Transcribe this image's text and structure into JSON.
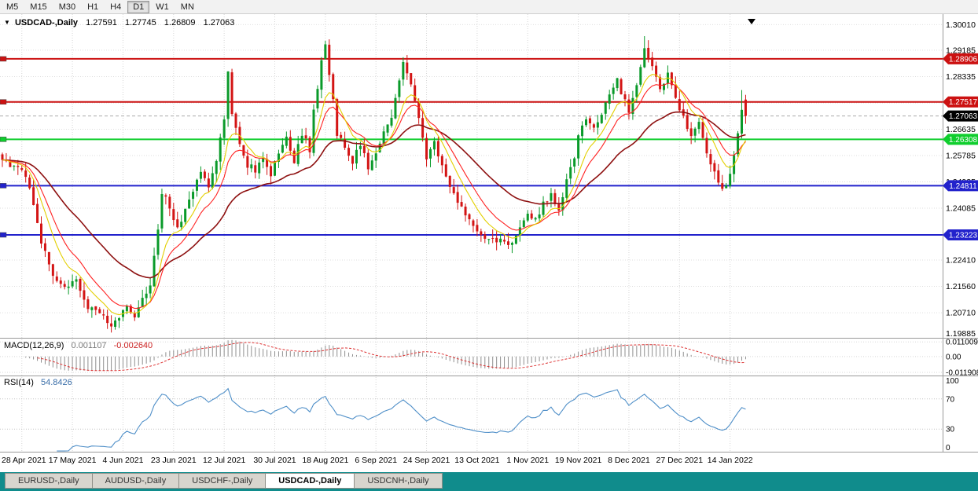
{
  "icons": {
    "dropdown": "▼"
  },
  "toolbar": {
    "timeframes": [
      "M5",
      "M15",
      "M30",
      "H1",
      "H4",
      "D1",
      "W1",
      "MN"
    ],
    "active": "D1"
  },
  "title": {
    "symbol": "USDCAD-,Daily",
    "open": "1.27591",
    "high": "1.27745",
    "low": "1.26809",
    "close": "1.27063"
  },
  "panes": {
    "macd": {
      "name": "MACD(12,26,9)",
      "value_main": "0.001107",
      "value_signal": "-0.002640"
    },
    "rsi": {
      "name": "RSI(14)",
      "value": "54.8426"
    }
  },
  "tabs": {
    "items": [
      "EURUSD-,Daily",
      "AUDUSD-,Daily",
      "USDCHF-,Daily",
      "USDCAD-,Daily",
      "USDCNH-,Daily"
    ],
    "active_index": 3
  },
  "chart_data": {
    "type": "candlestick",
    "symbol": "USDCAD",
    "timeframe": "Daily",
    "last_ohlc": {
      "open": 1.27591,
      "high": 1.27745,
      "low": 1.26809,
      "close": 1.27063
    },
    "price_range": [
      1.199,
      1.3035
    ],
    "price_axis_labels": [
      "1.30010",
      "1.29185",
      "1.28335",
      "1.27485",
      "1.26635",
      "1.25785",
      "1.24935",
      "1.24085",
      "1.23235",
      "1.22410",
      "1.21560",
      "1.20710",
      "1.19885"
    ],
    "date_labels": [
      "28 Apr 2021",
      "17 May 2021",
      "4 Jun 2021",
      "23 Jun 2021",
      "12 Jul 2021",
      "30 Jul 2021",
      "18 Aug 2021",
      "6 Sep 2021",
      "24 Sep 2021",
      "13 Oct 2021",
      "1 Nov 2021",
      "19 Nov 2021",
      "8 Dec 2021",
      "27 Dec 2021",
      "14 Jan 2022"
    ],
    "date_tick_first": 5,
    "date_tick_step": 13,
    "candle_count": 192,
    "candle_colors": {
      "up": "#0a9a2a",
      "down": "#d31414"
    },
    "close_waypoints": [
      [
        0,
        1.256
      ],
      [
        3,
        1.254
      ],
      [
        5,
        1.2535
      ],
      [
        7,
        1.248
      ],
      [
        10,
        1.23
      ],
      [
        13,
        1.22
      ],
      [
        16,
        1.215
      ],
      [
        19,
        1.217
      ],
      [
        22,
        1.209
      ],
      [
        25,
        1.207
      ],
      [
        28,
        1.2035
      ],
      [
        30,
        1.206
      ],
      [
        32,
        1.209
      ],
      [
        34,
        1.206
      ],
      [
        36,
        1.212
      ],
      [
        38,
        1.215
      ],
      [
        40,
        1.234
      ],
      [
        41,
        1.246
      ],
      [
        43,
        1.241
      ],
      [
        45,
        1.235
      ],
      [
        47,
        1.24
      ],
      [
        49,
        1.246
      ],
      [
        51,
        1.253
      ],
      [
        53,
        1.248
      ],
      [
        55,
        1.256
      ],
      [
        57,
        1.27
      ],
      [
        58,
        1.284
      ],
      [
        59,
        1.272
      ],
      [
        61,
        1.262
      ],
      [
        63,
        1.255
      ],
      [
        65,
        1.253
      ],
      [
        67,
        1.256
      ],
      [
        69,
        1.252
      ],
      [
        71,
        1.258
      ],
      [
        73,
        1.264
      ],
      [
        75,
        1.256
      ],
      [
        77,
        1.265
      ],
      [
        79,
        1.26
      ],
      [
        80,
        1.272
      ],
      [
        82,
        1.288
      ],
      [
        83,
        1.293
      ],
      [
        85,
        1.275
      ],
      [
        86,
        1.265
      ],
      [
        88,
        1.26
      ],
      [
        90,
        1.256
      ],
      [
        92,
        1.262
      ],
      [
        94,
        1.254
      ],
      [
        96,
        1.258
      ],
      [
        98,
        1.265
      ],
      [
        100,
        1.27
      ],
      [
        101,
        1.277
      ],
      [
        103,
        1.287
      ],
      [
        105,
        1.28
      ],
      [
        107,
        1.27
      ],
      [
        109,
        1.257
      ],
      [
        111,
        1.262
      ],
      [
        113,
        1.255
      ],
      [
        115,
        1.248
      ],
      [
        117,
        1.243
      ],
      [
        119,
        1.239
      ],
      [
        121,
        1.235
      ],
      [
        123,
        1.233
      ],
      [
        125,
        1.231
      ],
      [
        127,
        1.23
      ],
      [
        129,
        1.231
      ],
      [
        131,
        1.229
      ],
      [
        133,
        1.235
      ],
      [
        135,
        1.239
      ],
      [
        137,
        1.237
      ],
      [
        139,
        1.242
      ],
      [
        141,
        1.245
      ],
      [
        143,
        1.24
      ],
      [
        145,
        1.25
      ],
      [
        147,
        1.258
      ],
      [
        148,
        1.264
      ],
      [
        150,
        1.27
      ],
      [
        152,
        1.266
      ],
      [
        154,
        1.272
      ],
      [
        156,
        1.278
      ],
      [
        158,
        1.283
      ],
      [
        159,
        1.278
      ],
      [
        161,
        1.272
      ],
      [
        163,
        1.28
      ],
      [
        165,
        1.293
      ],
      [
        167,
        1.287
      ],
      [
        169,
        1.28
      ],
      [
        171,
        1.284
      ],
      [
        173,
        1.276
      ],
      [
        175,
        1.27
      ],
      [
        177,
        1.264
      ],
      [
        179,
        1.268
      ],
      [
        181,
        1.259
      ],
      [
        183,
        1.252
      ],
      [
        185,
        1.246
      ],
      [
        186,
        1.2485
      ],
      [
        187,
        1.253
      ],
      [
        188,
        1.257
      ],
      [
        189,
        1.265
      ],
      [
        190,
        1.273
      ],
      [
        191,
        1.27063
      ]
    ],
    "wick_extremes": [
      [
        28,
        "low",
        1.2007
      ],
      [
        58,
        "high",
        1.2848
      ],
      [
        83,
        "high",
        1.2949
      ],
      [
        103,
        "high",
        1.2896
      ],
      [
        131,
        "low",
        1.2288
      ],
      [
        165,
        "high",
        1.2964
      ],
      [
        190,
        "high",
        1.279
      ]
    ],
    "moving_averages": [
      {
        "period": 8,
        "color": "#e3cf00"
      },
      {
        "period": 13,
        "color": "#ff2222"
      },
      {
        "period": 34,
        "color": "#8e1111"
      }
    ],
    "horizontal_levels": [
      {
        "price": 1.28906,
        "label": "1.28906",
        "color": "#cc1111"
      },
      {
        "price": 1.27517,
        "label": "1.27517",
        "color": "#cc1111"
      },
      {
        "price": 1.26308,
        "label": "1.26308",
        "color": "#0fce2d"
      },
      {
        "price": 1.24811,
        "label": "1.24811",
        "color": "#2222cc"
      },
      {
        "price": 1.23223,
        "label": "1.23223",
        "color": "#2222cc"
      }
    ],
    "current_price": {
      "price": 1.27063,
      "label": "1.27063",
      "color": "#000000"
    },
    "macd": {
      "params": "12,26,9",
      "range": [
        0.0135,
        -0.0143
      ],
      "axis_labels": [
        "0.011009",
        "0.00",
        "-0.011908"
      ],
      "histogram_color": "#8f8f8f",
      "signal_color": "#dd3333"
    },
    "rsi": {
      "period": 14,
      "axis_labels": [
        "100",
        "70",
        "30",
        "0"
      ],
      "grid_levels": [
        70,
        30
      ],
      "line_color": "#4f8fc8"
    }
  }
}
